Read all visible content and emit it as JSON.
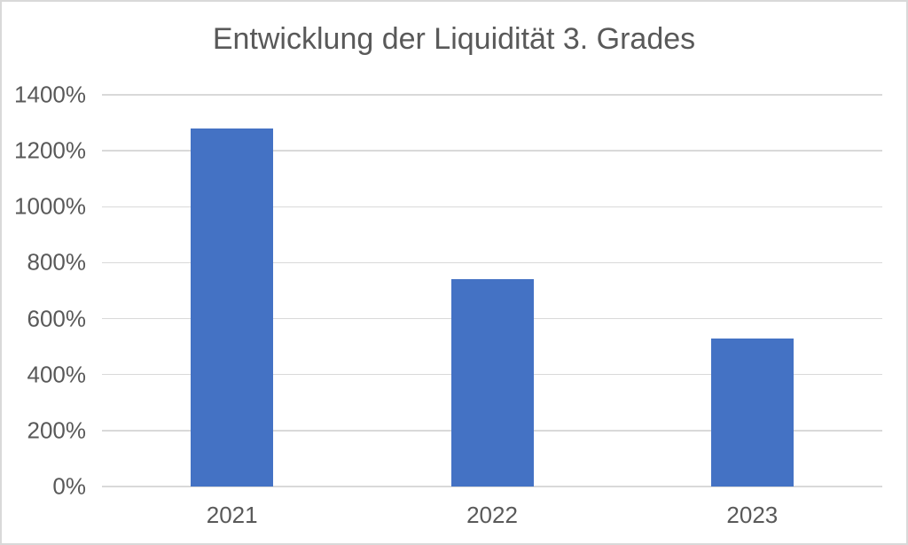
{
  "chart_data": {
    "type": "bar",
    "title": "Entwicklung der Liquidität 3. Grades",
    "categories": [
      "2021",
      "2022",
      "2023"
    ],
    "values": [
      1280,
      740,
      530
    ],
    "unit": "%",
    "xlabel": "",
    "ylabel": "",
    "ylim": [
      0,
      1400
    ],
    "ytick_step": 200,
    "yticks": [
      0,
      200,
      400,
      600,
      800,
      1000,
      1200,
      1400
    ],
    "ytick_labels": [
      "0%",
      "200%",
      "400%",
      "600%",
      "800%",
      "1000%",
      "1200%",
      "1400%"
    ],
    "grid": true,
    "legend_position": "none",
    "colors": {
      "bar": "#4472C4",
      "gridline": "#D9D9D9",
      "title_text": "#595959",
      "axis_text": "#595959",
      "chart_border": "#D9D9D9",
      "background": "#FFFFFF"
    }
  }
}
